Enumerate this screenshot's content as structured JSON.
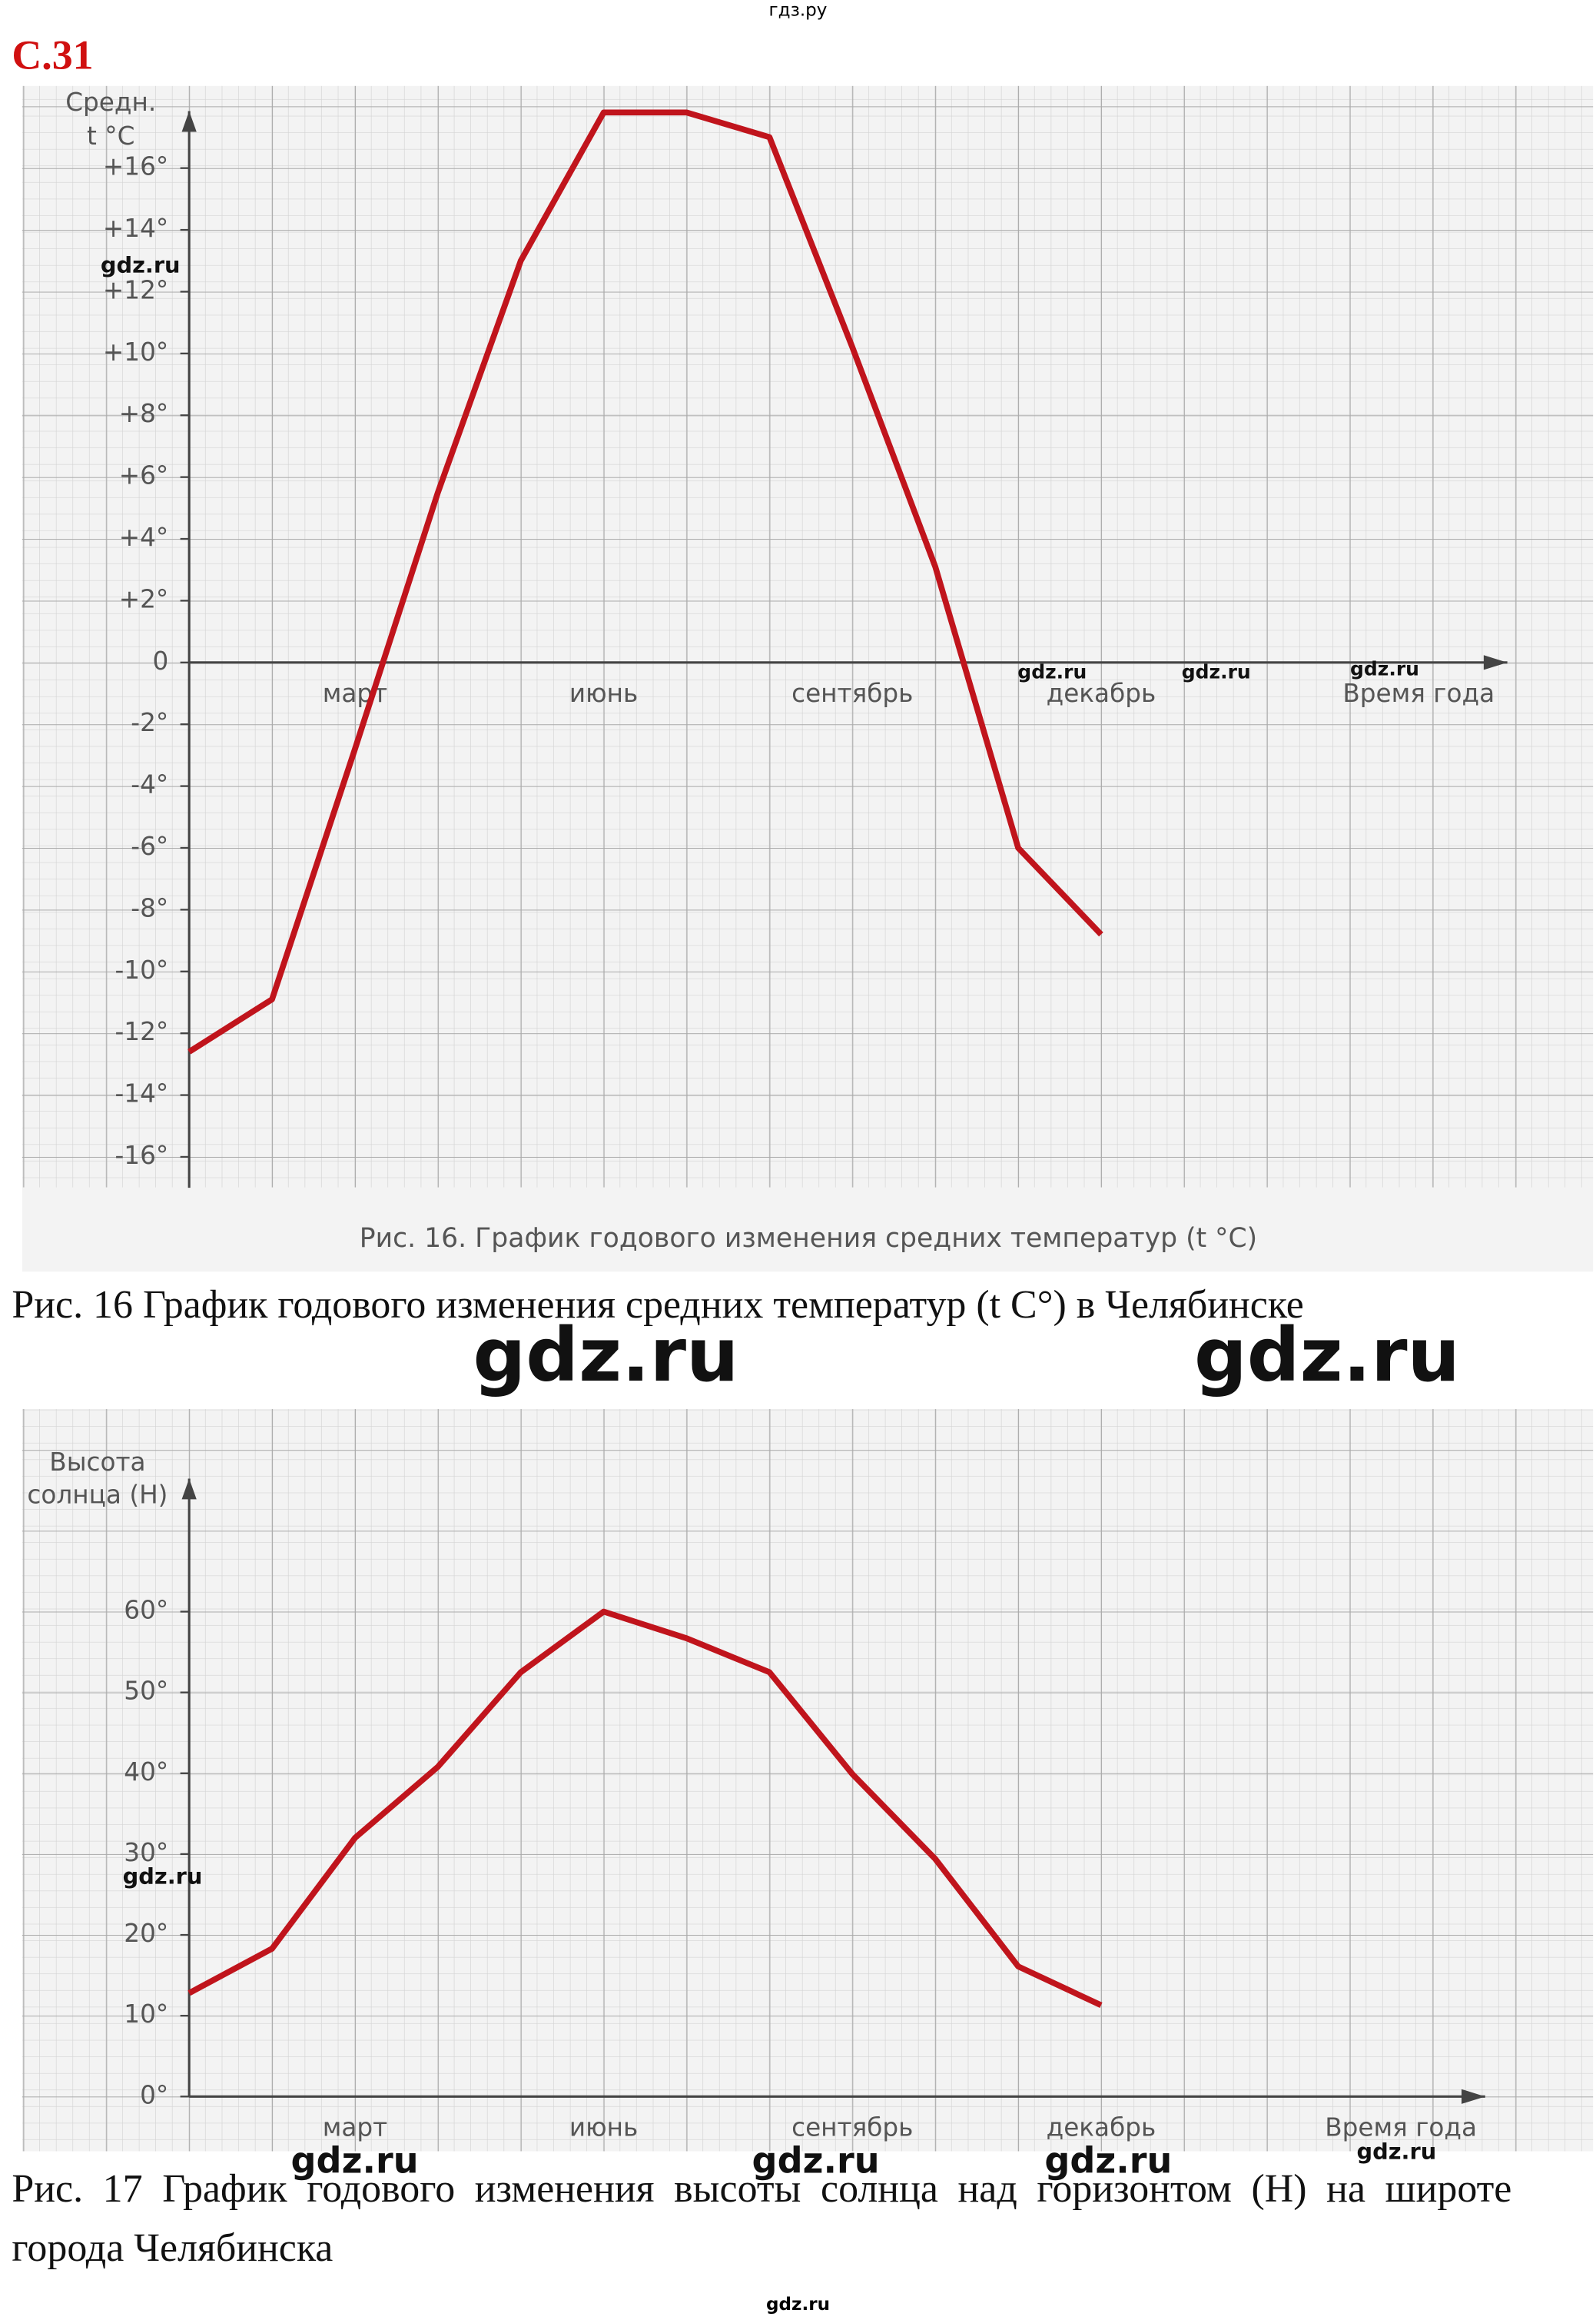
{
  "header": "гдз.ру",
  "page_number": "С.31",
  "captions": [
    "Рис. 16 График годового изменения средних температур (t C°) в Челябинске",
    "Рис. 17 График годового изменения высоты солнца над горизонтом (Н) на широте города Челябинска"
  ],
  "watermarks": [
    "gdz.ru",
    "gdz.ru",
    "gdz.ru",
    "gdz.ru",
    "gdz.ru",
    "gdz.ru",
    "gdz.ru",
    "gdz.ru",
    "gdz.ru",
    "gdz.ru",
    "gdz.ru"
  ],
  "footer": "gdz.ru",
  "chart_data": [
    {
      "type": "line",
      "ylabel": [
        "Средн.",
        "t °C"
      ],
      "xlabel": "Время года",
      "caption": "Рис. 16. График годового изменения средних температур (t °C)",
      "categories": [
        null,
        null,
        "март",
        null,
        null,
        "июнь",
        null,
        null,
        "сентябрь",
        null,
        null,
        "декабрь"
      ],
      "series": [
        {
          "color": "#c0141c",
          "values": [
            -12.6,
            -10.9,
            -2.8,
            5.5,
            13.0,
            17.8,
            17.8,
            17.0,
            10.2,
            3.1,
            -6.0,
            -8.8
          ]
        }
      ],
      "ylim": [
        -17,
        18.5
      ],
      "yticks": [
        {
          "value": 16,
          "label": "+16°"
        },
        {
          "value": 14,
          "label": "+14°"
        },
        {
          "value": 12,
          "label": "+12°"
        },
        {
          "value": 10,
          "label": "+10°"
        },
        {
          "value": 8,
          "label": "+8°"
        },
        {
          "value": 6,
          "label": "+6°"
        },
        {
          "value": 4,
          "label": "+4°"
        },
        {
          "value": 2,
          "label": "+2°"
        },
        0,
        {
          "value": -2,
          "label": "-2°"
        },
        {
          "value": -4,
          "label": "-4°"
        },
        {
          "value": -6,
          "label": "-6°"
        },
        {
          "value": -8,
          "label": "-8°"
        },
        {
          "value": -10,
          "label": "-10°"
        },
        {
          "value": -12,
          "label": "-12°"
        },
        {
          "value": -14,
          "label": "-14°"
        },
        {
          "value": -16,
          "label": "-16°"
        }
      ]
    },
    {
      "type": "line",
      "ylabel": [
        "Высота",
        "солнца (Н)"
      ],
      "xlabel": "Время года",
      "categories": [
        null,
        null,
        "март",
        null,
        null,
        "июнь",
        null,
        null,
        "сентябрь",
        null,
        null,
        "декабрь"
      ],
      "series": [
        {
          "color": "#c0141c",
          "values": [
            12.8,
            18.3,
            32.0,
            40.8,
            52.5,
            60.0,
            56.7,
            52.5,
            39.9,
            29.4,
            16.1,
            11.3
          ]
        }
      ],
      "ylim": [
        0,
        75
      ],
      "yticks": [
        {
          "value": 0,
          "label": "0°"
        },
        {
          "value": 10,
          "label": "10°"
        },
        {
          "value": 20,
          "label": "20°"
        },
        {
          "value": 30,
          "label": "30°"
        },
        {
          "value": 40,
          "label": "40°"
        },
        {
          "value": 50,
          "label": "50°"
        },
        {
          "value": 60,
          "label": "60°"
        }
      ]
    }
  ]
}
